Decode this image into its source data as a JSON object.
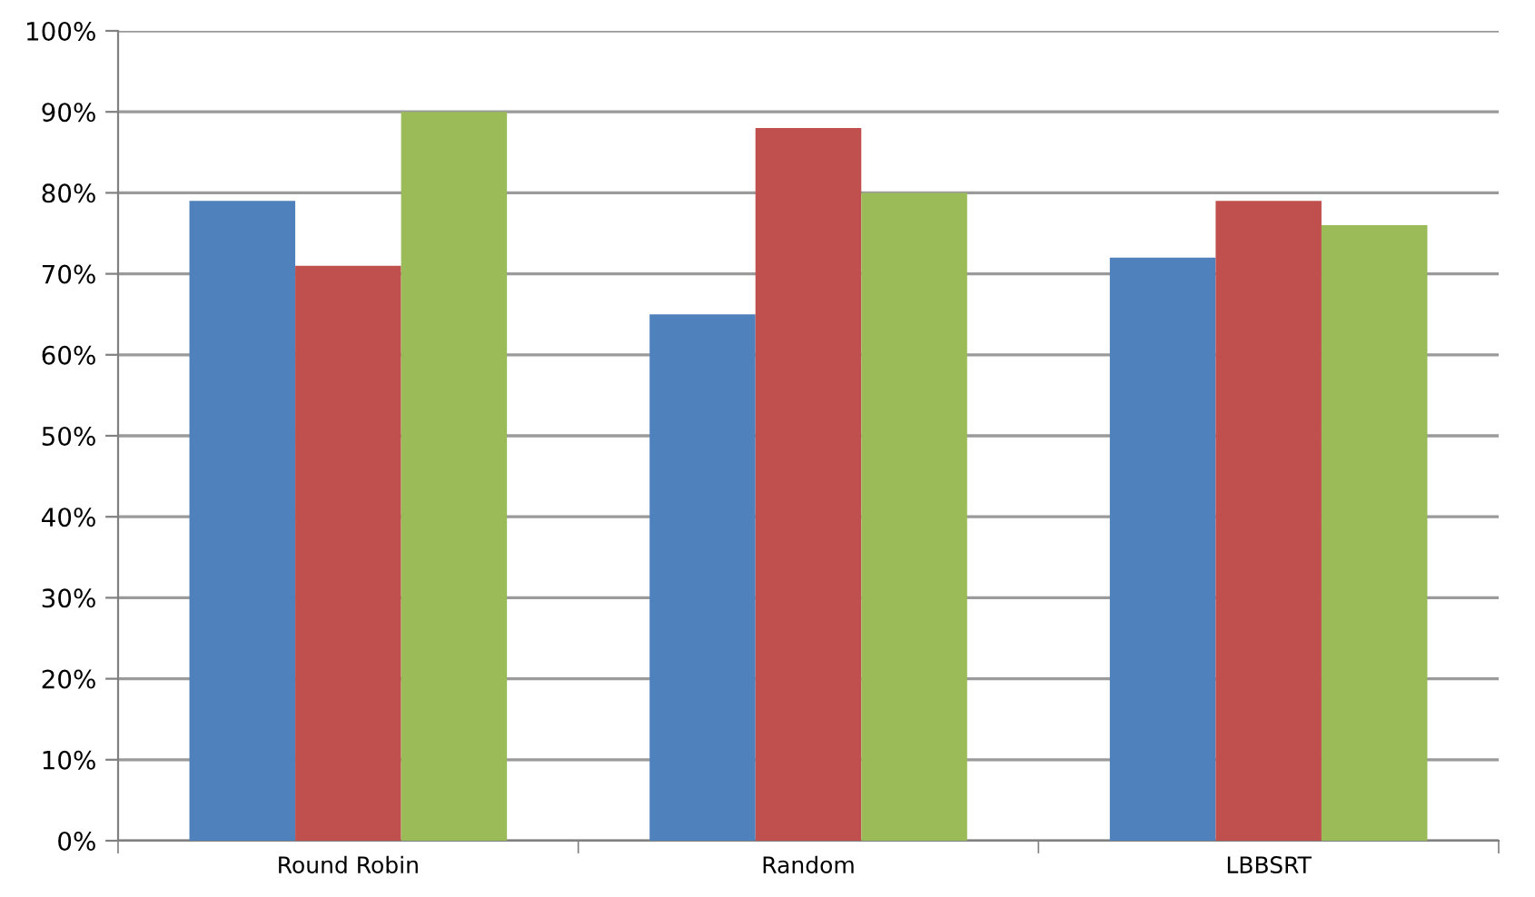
{
  "chart_data": {
    "type": "bar",
    "categories": [
      "Round Robin",
      "Random",
      "LBBSRT"
    ],
    "series": [
      {
        "color": "#4f81bd",
        "values": [
          79,
          65,
          72
        ]
      },
      {
        "color": "#c0504d",
        "values": [
          71,
          88,
          79
        ]
      },
      {
        "color": "#9bbb59",
        "values": [
          90,
          80,
          76
        ]
      }
    ],
    "ylim": [
      0,
      100
    ],
    "yticks": [
      {
        "value": 0,
        "label": "0%"
      },
      {
        "value": 10,
        "label": "10%"
      },
      {
        "value": 20,
        "label": "20%"
      },
      {
        "value": 30,
        "label": "30%"
      },
      {
        "value": 40,
        "label": "40%"
      },
      {
        "value": 50,
        "label": "50%"
      },
      {
        "value": 60,
        "label": "60%"
      },
      {
        "value": 70,
        "label": "70%"
      },
      {
        "value": 80,
        "label": "80%"
      },
      {
        "value": 90,
        "label": "90%"
      },
      {
        "value": 100,
        "label": "100%"
      }
    ],
    "grid": "y"
  }
}
